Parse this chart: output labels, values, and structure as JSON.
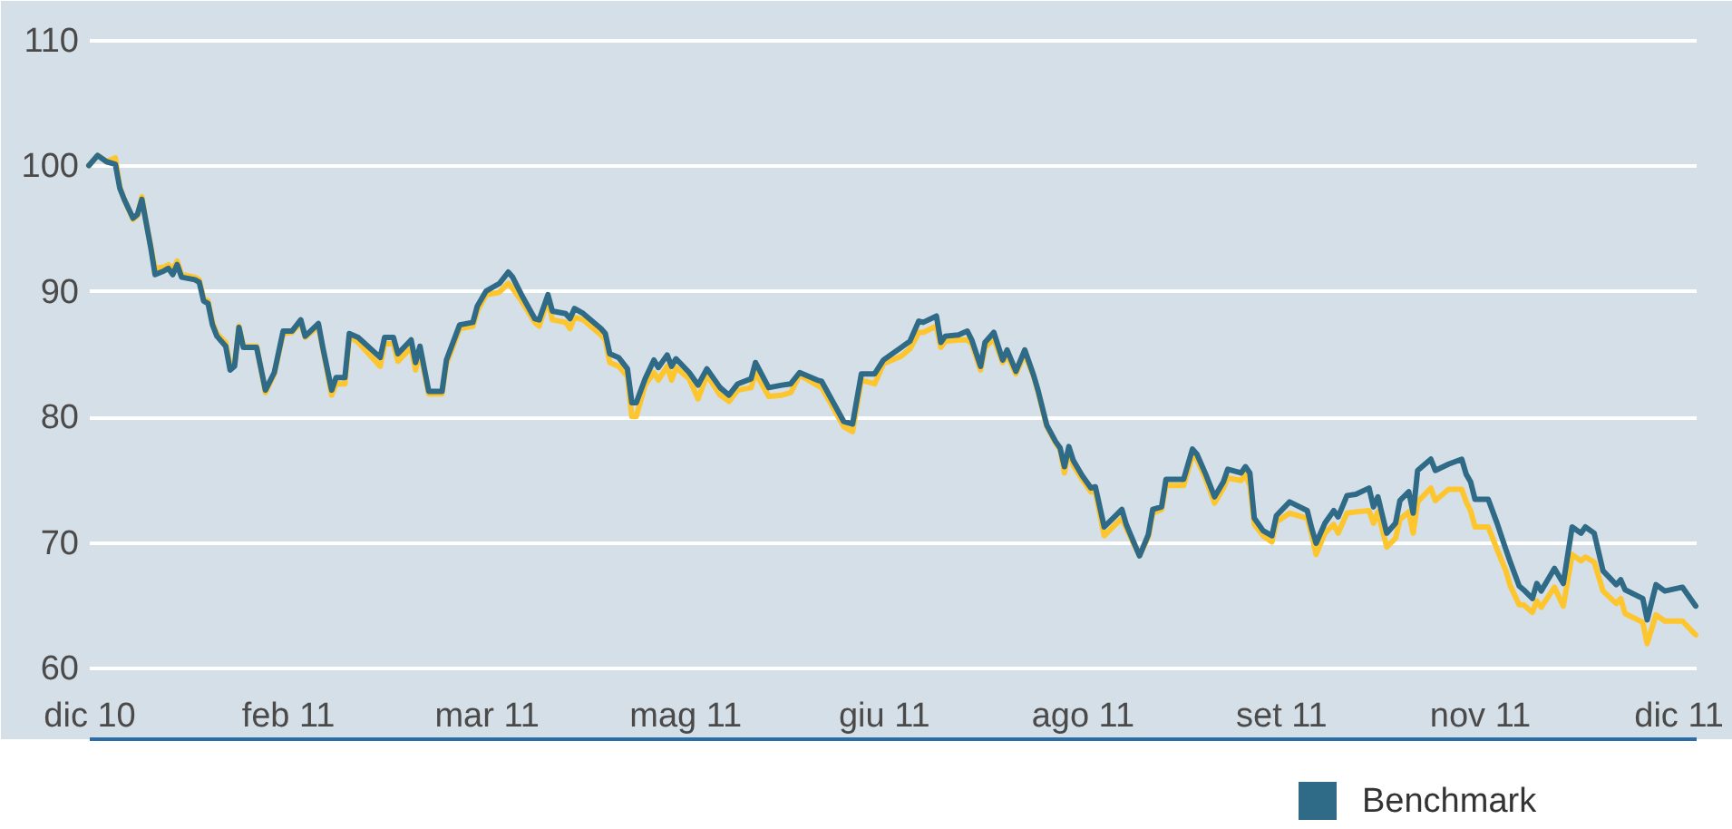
{
  "chart_data": {
    "type": "line",
    "x": [
      "2010-12-31",
      "2011-01-02",
      "2011-01-04",
      "2011-01-06",
      "2011-01-07",
      "2011-01-08",
      "2011-01-10",
      "2011-01-11",
      "2011-01-12",
      "2011-01-13",
      "2011-01-14",
      "2011-01-15",
      "2011-01-17",
      "2011-01-18",
      "2011-01-19",
      "2011-01-20",
      "2011-01-21",
      "2011-01-24",
      "2011-01-25",
      "2011-01-26",
      "2011-01-27",
      "2011-01-28",
      "2011-01-29",
      "2011-01-31",
      "2011-02-01",
      "2011-02-02",
      "2011-02-03",
      "2011-02-04",
      "2011-02-07",
      "2011-02-09",
      "2011-02-11",
      "2011-02-13",
      "2011-02-15",
      "2011-02-17",
      "2011-02-18",
      "2011-02-21",
      "2011-02-22",
      "2011-02-24",
      "2011-02-25",
      "2011-02-27",
      "2011-02-28",
      "2011-03-02",
      "2011-03-07",
      "2011-03-08",
      "2011-03-10",
      "2011-03-11",
      "2011-03-14",
      "2011-03-15",
      "2011-03-16",
      "2011-03-18",
      "2011-03-21",
      "2011-03-22",
      "2011-03-25",
      "2011-03-28",
      "2011-03-29",
      "2011-03-31",
      "2011-04-03",
      "2011-04-05",
      "2011-04-06",
      "2011-04-08",
      "2011-04-11",
      "2011-04-12",
      "2011-04-14",
      "2011-04-15",
      "2011-04-18",
      "2011-04-19",
      "2011-04-20",
      "2011-04-22",
      "2011-04-26",
      "2011-04-27",
      "2011-04-28",
      "2011-04-30",
      "2011-05-02",
      "2011-05-03",
      "2011-05-04",
      "2011-05-06",
      "2011-05-08",
      "2011-05-09",
      "2011-05-11",
      "2011-05-12",
      "2011-05-13",
      "2011-05-16",
      "2011-05-18",
      "2011-05-20",
      "2011-05-23",
      "2011-05-25",
      "2011-05-27",
      "2011-05-30",
      "2011-05-31",
      "2011-06-03",
      "2011-06-06",
      "2011-06-08",
      "2011-06-10",
      "2011-06-14",
      "2011-06-15",
      "2011-06-20",
      "2011-06-22",
      "2011-06-24",
      "2011-06-27",
      "2011-06-29",
      "2011-07-03",
      "2011-07-05",
      "2011-07-07",
      "2011-07-08",
      "2011-07-11",
      "2011-07-12",
      "2011-07-13",
      "2011-07-16",
      "2011-07-18",
      "2011-07-19",
      "2011-07-21",
      "2011-07-22",
      "2011-07-24",
      "2011-07-26",
      "2011-07-27",
      "2011-07-29",
      "2011-07-31",
      "2011-08-02",
      "2011-08-03",
      "2011-08-05",
      "2011-08-07",
      "2011-08-08",
      "2011-08-09",
      "2011-08-10",
      "2011-08-11",
      "2011-08-13",
      "2011-08-15",
      "2011-08-16",
      "2011-08-18",
      "2011-08-20",
      "2011-08-22",
      "2011-08-23",
      "2011-08-26",
      "2011-08-28",
      "2011-08-29",
      "2011-08-31",
      "2011-09-01",
      "2011-09-05",
      "2011-09-07",
      "2011-09-08",
      "2011-09-10",
      "2011-09-12",
      "2011-09-14",
      "2011-09-15",
      "2011-09-18",
      "2011-09-19",
      "2011-09-20",
      "2011-09-21",
      "2011-09-23",
      "2011-09-25",
      "2011-09-26",
      "2011-09-29",
      "2011-10-03",
      "2011-10-04",
      "2011-10-05",
      "2011-10-07",
      "2011-10-09",
      "2011-10-10",
      "2011-10-12",
      "2011-10-14",
      "2011-10-17",
      "2011-10-18",
      "2011-10-19",
      "2011-10-21",
      "2011-10-23",
      "2011-10-24",
      "2011-10-26",
      "2011-10-27",
      "2011-10-28",
      "2011-10-31",
      "2011-11-01",
      "2011-11-04",
      "2011-11-07",
      "2011-11-08",
      "2011-11-09",
      "2011-11-10",
      "2011-11-13",
      "2011-11-15",
      "2011-11-17",
      "2011-11-18",
      "2011-11-20",
      "2011-11-21",
      "2011-11-23",
      "2011-11-24",
      "2011-11-25",
      "2011-11-28",
      "2011-11-30",
      "2011-12-02",
      "2011-12-04",
      "2011-12-05",
      "2011-12-07",
      "2011-12-09",
      "2011-12-12",
      "2011-12-13",
      "2011-12-14",
      "2011-12-18",
      "2011-12-19",
      "2011-12-21",
      "2011-12-23",
      "2011-12-27",
      "2011-12-30"
    ],
    "series": [
      {
        "color": "#fec62e",
        "values": [
          100.0,
          100.8,
          100.3,
          100.6,
          98.3,
          97.3,
          95.7,
          96.0,
          97.5,
          95.4,
          93.6,
          91.8,
          91.9,
          92.1,
          91.7,
          92.4,
          91.3,
          91.1,
          90.9,
          89.4,
          89.2,
          87.5,
          86.6,
          85.9,
          84.0,
          84.1,
          87.2,
          85.6,
          85.6,
          81.9,
          83.4,
          86.6,
          86.7,
          87.5,
          86.3,
          87.2,
          85.4,
          81.7,
          82.6,
          82.6,
          86.4,
          85.9,
          84.0,
          85.8,
          85.8,
          84.4,
          85.5,
          83.7,
          85.2,
          81.8,
          81.8,
          84.2,
          87.0,
          87.2,
          88.4,
          89.7,
          89.9,
          90.6,
          90.2,
          89.2,
          87.5,
          87.2,
          89.3,
          87.7,
          87.5,
          87.0,
          87.9,
          87.7,
          86.5,
          86.1,
          84.3,
          84.0,
          83.2,
          80.0,
          80.0,
          82.5,
          83.5,
          82.9,
          84.0,
          82.9,
          83.9,
          83.0,
          81.4,
          83.3,
          81.7,
          81.2,
          82.1,
          82.3,
          83.5,
          81.6,
          81.7,
          81.9,
          83.3,
          82.5,
          82.3,
          79.2,
          78.8,
          82.9,
          82.6,
          84.2,
          84.8,
          85.4,
          86.7,
          86.7,
          87.2,
          85.5,
          86.0,
          86.1,
          86.1,
          85.8,
          83.7,
          85.5,
          86.2,
          84.3,
          84.9,
          83.4,
          85.0,
          83.2,
          82.0,
          79.2,
          77.9,
          77.4,
          75.5,
          77.4,
          76.1,
          75.0,
          74.0,
          74.0,
          70.5,
          71.2,
          71.9,
          71.1,
          68.9,
          70.4,
          72.3,
          72.6,
          74.5,
          74.5,
          76.9,
          76.6,
          75.0,
          73.1,
          74.3,
          75.1,
          74.9,
          75.4,
          74.5,
          71.4,
          70.5,
          70.0,
          71.6,
          72.3,
          71.9,
          70.6,
          69.0,
          70.7,
          71.4,
          70.7,
          72.3,
          72.4,
          72.5,
          71.5,
          72.4,
          69.6,
          70.3,
          71.8,
          72.4,
          70.7,
          73.2,
          74.3,
          73.3,
          74.2,
          74.2,
          73.2,
          72.5,
          71.2,
          71.2,
          69.4,
          67.7,
          66.5,
          65.0,
          65.0,
          64.4,
          65.3,
          64.8,
          66.4,
          64.9,
          69.0,
          68.5,
          68.8,
          68.4,
          66.1,
          65.1,
          65.5,
          64.3,
          63.6,
          61.9,
          64.2,
          63.7,
          63.7,
          62.6
        ]
      },
      {
        "name": "Benchmark",
        "color": "#2f6a86",
        "values": [
          100.0,
          100.8,
          100.3,
          100.1,
          98.2,
          97.3,
          95.8,
          96.1,
          97.3,
          95.4,
          93.5,
          91.3,
          91.6,
          91.8,
          91.3,
          92.1,
          91.1,
          90.9,
          90.7,
          89.2,
          89.0,
          87.3,
          86.4,
          85.6,
          83.7,
          84.0,
          87.1,
          85.5,
          85.5,
          82.1,
          83.5,
          86.8,
          86.8,
          87.7,
          86.4,
          87.4,
          85.5,
          82.1,
          83.1,
          83.1,
          86.6,
          86.3,
          84.7,
          86.3,
          86.3,
          85.0,
          86.1,
          84.3,
          85.6,
          82.0,
          82.0,
          84.5,
          87.3,
          87.5,
          88.8,
          90.0,
          90.6,
          91.5,
          91.1,
          89.7,
          87.8,
          87.7,
          89.7,
          88.4,
          88.2,
          87.8,
          88.6,
          88.2,
          87.0,
          86.6,
          85.0,
          84.7,
          83.8,
          81.1,
          81.1,
          83.0,
          84.5,
          83.9,
          84.9,
          84.0,
          84.6,
          83.5,
          82.5,
          83.8,
          82.3,
          81.7,
          82.6,
          83.0,
          84.3,
          82.3,
          82.5,
          82.6,
          83.5,
          82.9,
          82.8,
          79.6,
          79.4,
          83.4,
          83.4,
          84.5,
          85.5,
          86.0,
          87.6,
          87.5,
          88.0,
          85.9,
          86.4,
          86.5,
          86.8,
          86.1,
          84.0,
          85.9,
          86.7,
          84.5,
          85.3,
          83.6,
          85.3,
          83.3,
          82.1,
          79.3,
          78.0,
          77.5,
          76.0,
          77.6,
          76.5,
          75.3,
          74.3,
          74.4,
          71.2,
          71.9,
          72.6,
          71.4,
          68.9,
          70.6,
          72.6,
          72.8,
          75.0,
          75.0,
          77.4,
          77.0,
          75.4,
          73.6,
          74.8,
          75.8,
          75.5,
          76.0,
          75.5,
          71.9,
          70.9,
          70.5,
          72.1,
          73.2,
          72.5,
          71.1,
          69.9,
          71.5,
          72.5,
          72.0,
          73.7,
          73.8,
          74.3,
          72.8,
          73.6,
          70.7,
          71.5,
          73.3,
          74.0,
          72.3,
          75.7,
          76.6,
          75.7,
          76.2,
          76.6,
          75.4,
          74.8,
          73.4,
          73.4,
          71.5,
          69.4,
          68.4,
          66.5,
          66.2,
          65.5,
          66.7,
          66.1,
          67.9,
          66.7,
          71.2,
          70.7,
          71.2,
          70.7,
          67.7,
          66.6,
          67.0,
          66.2,
          65.5,
          63.8,
          66.6,
          66.1,
          66.4,
          64.9
        ]
      }
    ],
    "xlim": [
      "2010-12-31",
      "2011-12-30"
    ],
    "xticks": [
      {
        "value": "2010-12-31",
        "label": "dic 10"
      },
      {
        "value": "2011-02-14",
        "label": "feb 11"
      },
      {
        "value": "2011-03-31",
        "label": "mar 11"
      },
      {
        "value": "2011-05-15",
        "label": "mag 11"
      },
      {
        "value": "2011-06-29",
        "label": "giu 11"
      },
      {
        "value": "2011-08-13",
        "label": "ago 11"
      },
      {
        "value": "2011-09-27",
        "label": "set 11"
      },
      {
        "value": "2011-11-11",
        "label": "nov 11"
      },
      {
        "value": "2011-12-26",
        "label": "dic 11"
      }
    ],
    "ylim": [
      60,
      110
    ],
    "yticks": [
      60,
      70,
      80,
      90,
      100,
      110
    ],
    "grid": "y",
    "legend": "bottom",
    "line_style": "solid"
  }
}
